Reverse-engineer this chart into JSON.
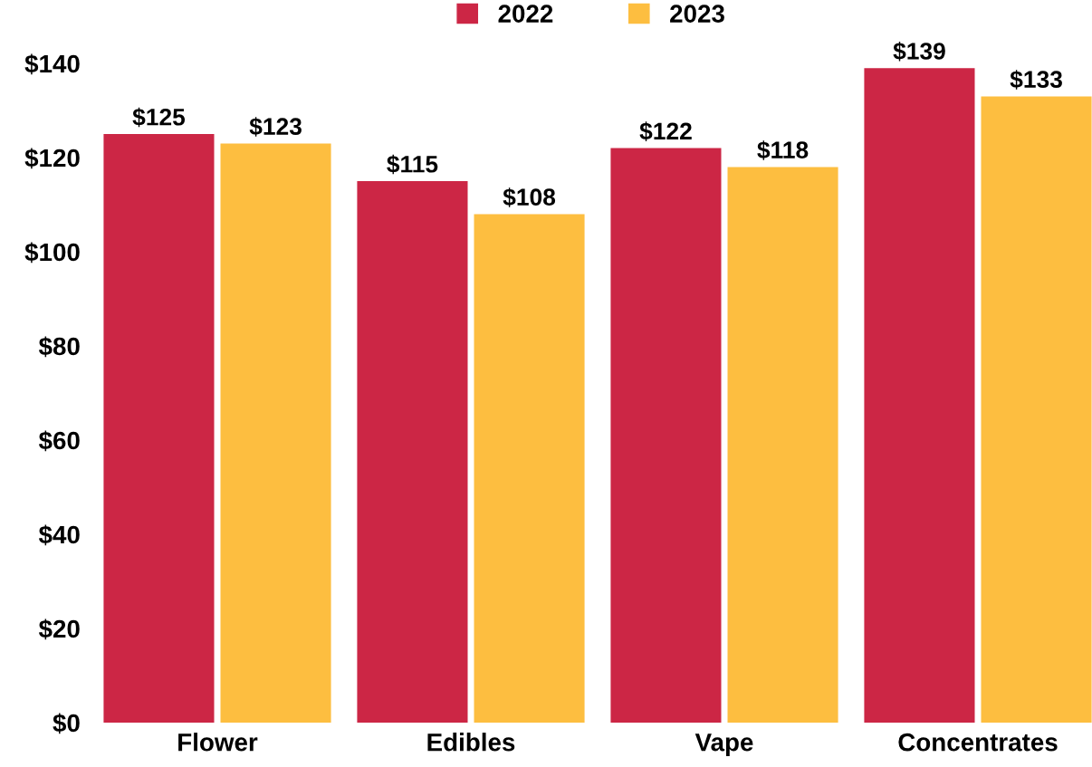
{
  "chart_data": {
    "type": "bar",
    "categories": [
      "Flower",
      "Edibles",
      "Vape",
      "Concentrates"
    ],
    "series": [
      {
        "name": "2022",
        "color": "#cc2645",
        "values": [
          125,
          115,
          122,
          139
        ],
        "value_labels": [
          "$125",
          "$115",
          "$122",
          "$139"
        ]
      },
      {
        "name": "2023",
        "color": "#fdbe40",
        "values": [
          123,
          108,
          118,
          133
        ],
        "value_labels": [
          "$123",
          "$108",
          "$118",
          "$133"
        ]
      }
    ],
    "ylim": [
      0,
      140
    ],
    "yticks": [
      {
        "value": 0,
        "label": "$0"
      },
      {
        "value": 20,
        "label": "$20"
      },
      {
        "value": 40,
        "label": "$40"
      },
      {
        "value": 60,
        "label": "$60"
      },
      {
        "value": 80,
        "label": "$80"
      },
      {
        "value": 100,
        "label": "$100"
      },
      {
        "value": 120,
        "label": "$120"
      },
      {
        "value": 140,
        "label": "$140"
      }
    ],
    "grid": false,
    "legend": "top"
  }
}
